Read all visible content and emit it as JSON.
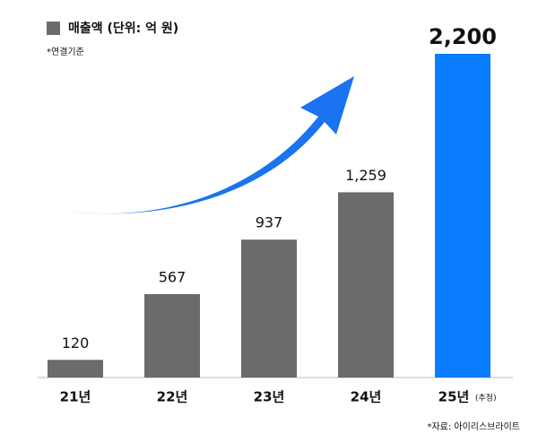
{
  "chart_data": {
    "type": "bar",
    "legend_label": "매출액 (단위: 억 원)",
    "note": "*연결기준",
    "source": "*자료: 아이리스브라이트",
    "categories": [
      "21년",
      "22년",
      "23년",
      "24년",
      "25년"
    ],
    "category_note": {
      "index": 4,
      "text": "(추정)"
    },
    "values": [
      120,
      567,
      937,
      1259,
      2200
    ],
    "value_labels": [
      "120",
      "567",
      "937",
      "1,259",
      "2,200"
    ],
    "colors": [
      "#6b6b6b",
      "#6b6b6b",
      "#6b6b6b",
      "#6b6b6b",
      "#0a7cff"
    ],
    "highlight_index": 4
  }
}
